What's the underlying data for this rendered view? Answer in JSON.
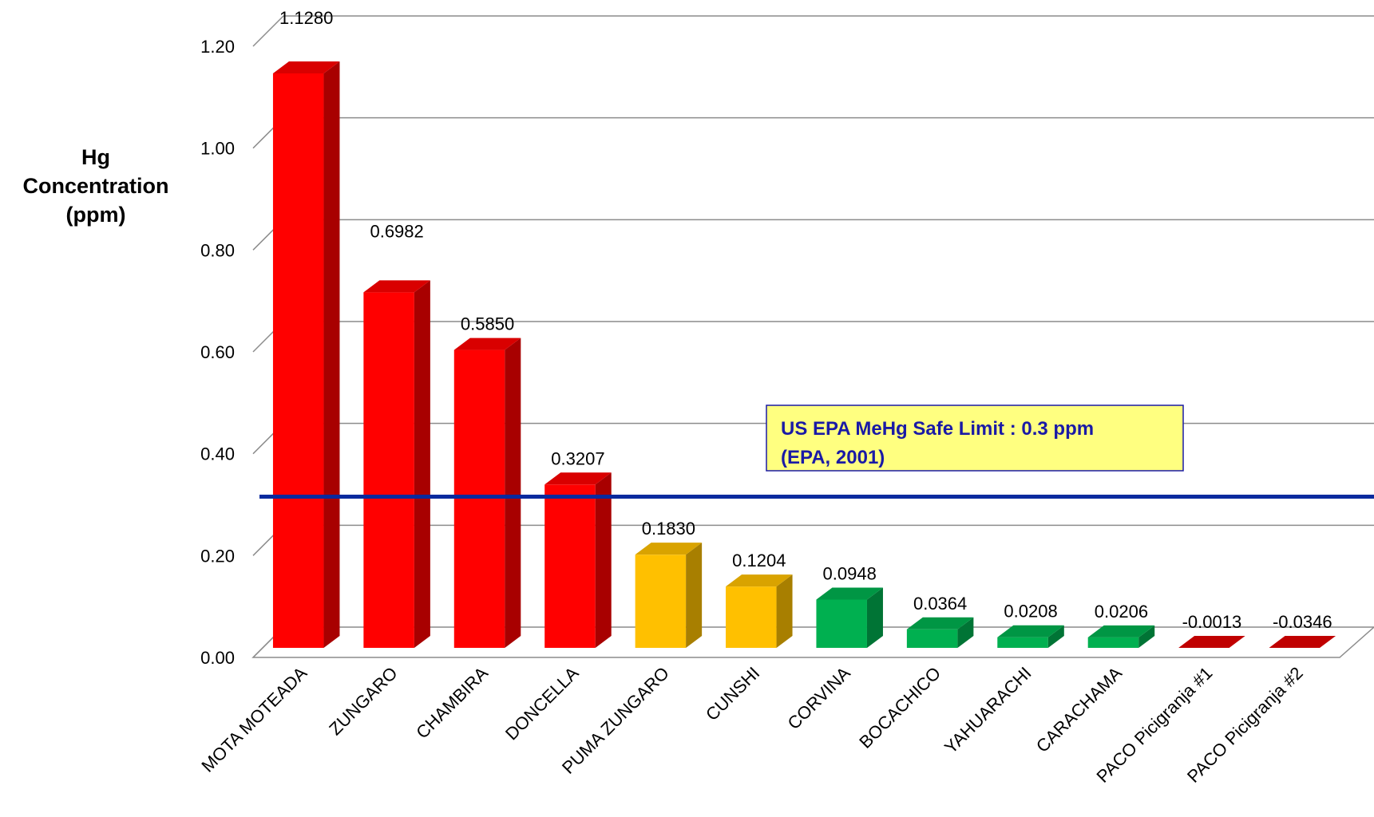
{
  "chart_data": {
    "type": "bar",
    "title": "",
    "xlabel": "",
    "ylabel_lines": [
      "Hg",
      "Concentration",
      "(ppm)"
    ],
    "ylim": [
      0,
      1.2
    ],
    "yticks": [
      "0.00",
      "0.20",
      "0.40",
      "0.60",
      "0.80",
      "1.00",
      "1.20"
    ],
    "grid": true,
    "categories": [
      "MOTA MOTEADA",
      "ZUNGARO",
      "CHAMBIRA",
      "DONCELLA",
      "PUMA ZUNGARO",
      "CUNSHI",
      "CORVINA",
      "BOCACHICO",
      "YAHUARACHI",
      "CARACHAMA",
      "PACO Picigranja #1",
      "PACO Picigranja #2"
    ],
    "values": [
      1.128,
      0.6982,
      0.585,
      0.3207,
      0.183,
      0.1204,
      0.0948,
      0.0364,
      0.0208,
      0.0206,
      -0.0013,
      -0.0346
    ],
    "value_labels": [
      "1.1280",
      "0.6982",
      "0.5850",
      "0.3207",
      "0.1830",
      "0.1204",
      "0.0948",
      "0.0364",
      "0.0208",
      "0.0206",
      "-0.0013",
      "-0.0346"
    ],
    "bar_colors": [
      "#ff0000",
      "#ff0000",
      "#ff0000",
      "#ff0000",
      "#ffc000",
      "#ffc000",
      "#00b050",
      "#00b050",
      "#00b050",
      "#00b050",
      "#c00000",
      "#c00000"
    ],
    "reference_line": {
      "value": 0.3,
      "color": "#0a2a9e"
    },
    "annotation": {
      "lines": [
        "US EPA MeHg Safe Limit : 0.3 ppm",
        "(EPA, 2001)"
      ],
      "background": "#ffff80",
      "border": "#1a1aa6"
    }
  }
}
